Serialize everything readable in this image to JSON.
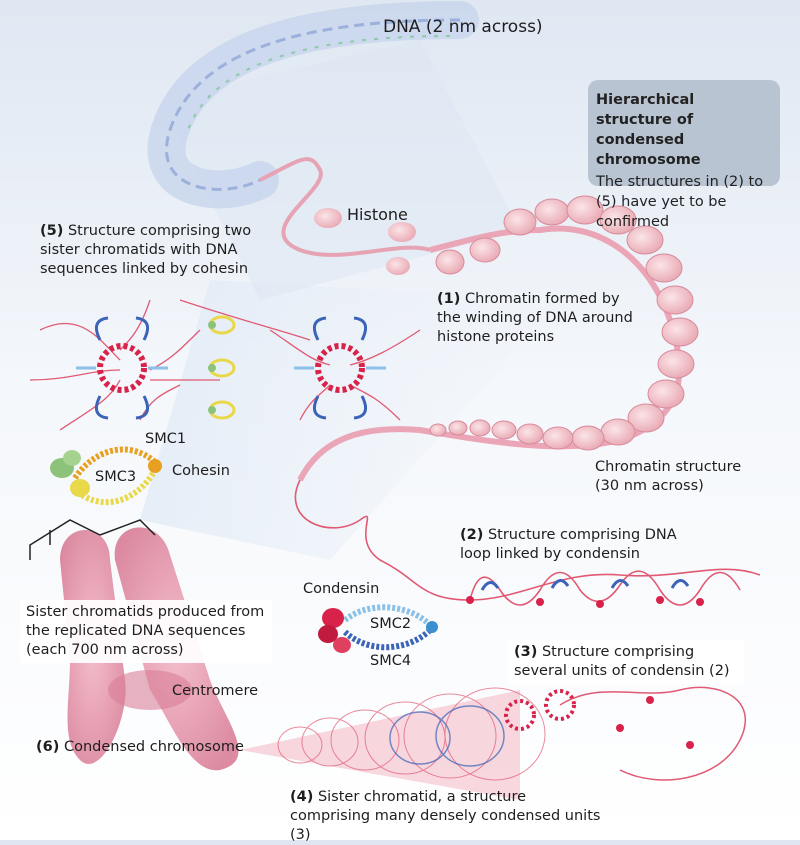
{
  "dna_label": "DNA (2 nm across)",
  "histone_label": "Histone",
  "info_box": {
    "title": "Hierarchical structure of condensed chromosome",
    "body": "The structures in (2) to (5) have yet to be confirmed"
  },
  "label_1": {
    "num": "(1)",
    "text": "Chromatin formed by the winding of DNA around histone proteins"
  },
  "chromatin_structure": "Chromatin structure (30 nm across)",
  "label_5": {
    "num": "(5)",
    "text": "Structure comprising two sister chromatids with DNA sequences linked by cohesin"
  },
  "smc1": "SMC1",
  "smc3": "SMC3",
  "cohesin": "Cohesin",
  "label_2": {
    "num": "(2)",
    "text": "Structure comprising DNA loop linked by condensin"
  },
  "condensin": "Condensin",
  "smc2": "SMC2",
  "smc4": "SMC4",
  "label_3": {
    "num": "(3)",
    "text": "Structure comprising several units of condensin (2)"
  },
  "sister_chromatids": "Sister chromatids produced from the replicated DNA sequences (each 700 nm across)",
  "centromere": "Centromere",
  "label_6": {
    "num": "(6)",
    "text": "Condensed chromosome"
  },
  "label_4": {
    "num": "(4)",
    "text": "Sister chromatid, a structure comprising many densely condensed units (3)"
  },
  "colors": {
    "dna": "#8fa6d6",
    "chromatin": "#e8a3b0",
    "histone": "#f2c9cf",
    "loop": "#e05a74",
    "blue": "#3b63b7",
    "light_blue": "#8cc0e6",
    "red": "#d8224a",
    "orange": "#f0a020",
    "yellow": "#e8d84a",
    "green": "#8cc27a",
    "chromosome": "#e9a3b6",
    "info_box": "#b9c4d3"
  }
}
